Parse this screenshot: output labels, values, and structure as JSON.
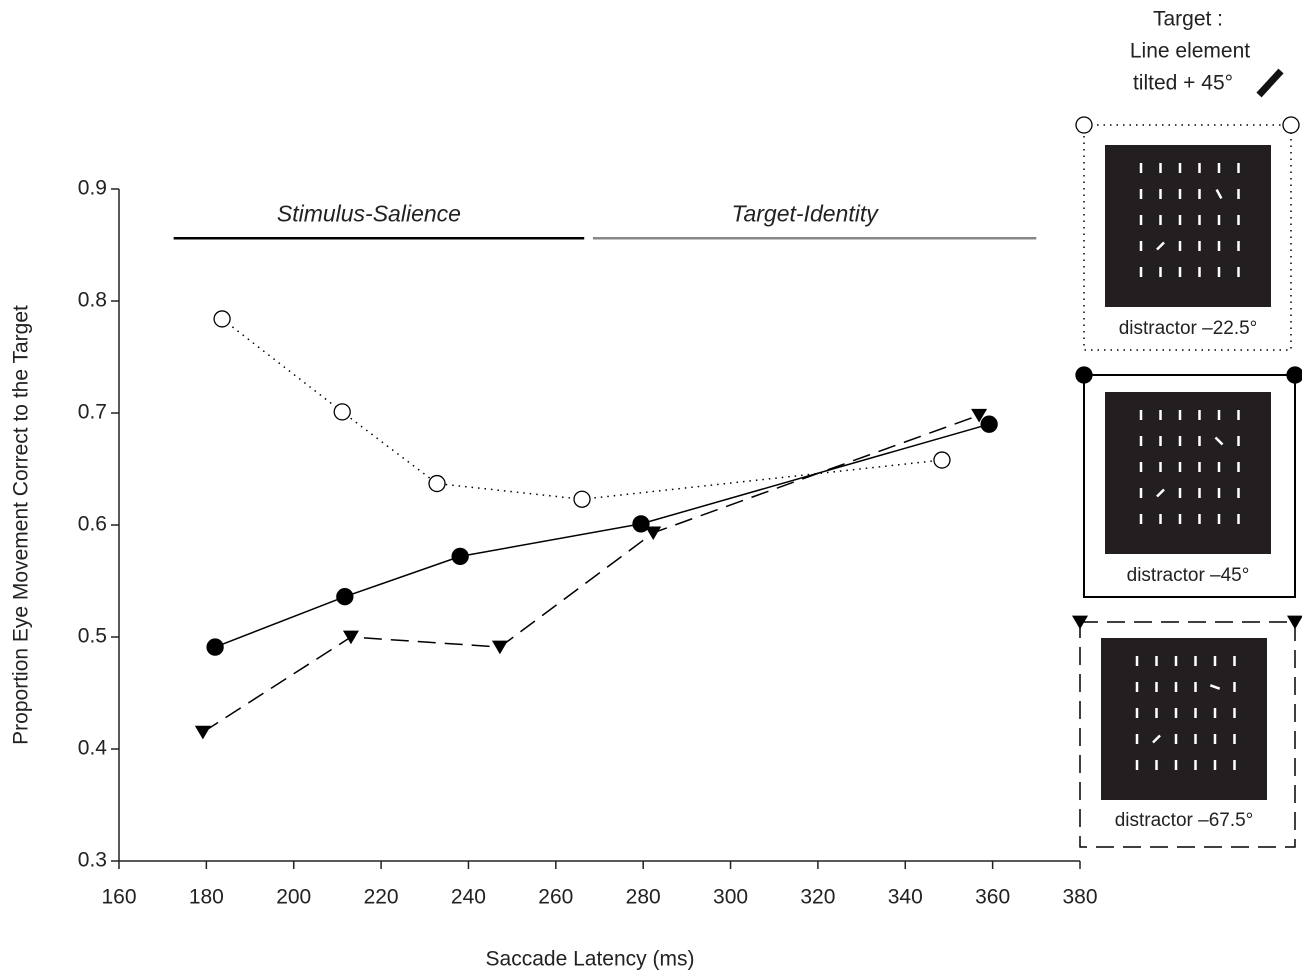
{
  "chart_data": {
    "type": "line",
    "x_label": "Saccade Latency (ms)",
    "y_label": "Proportion Eye Movement Correct to the Target",
    "xlim": [
      160,
      380
    ],
    "ylim": [
      0.3,
      0.9
    ],
    "xticks": [
      160,
      180,
      200,
      220,
      240,
      260,
      280,
      300,
      320,
      340,
      360,
      380
    ],
    "yticks": [
      0.3,
      0.4,
      0.5,
      0.6,
      0.7,
      0.8,
      0.9
    ],
    "annotations": [
      {
        "text": "Stimulus-Salience",
        "x": [
          172.5,
          266.5
        ],
        "y": 0.856,
        "color": "#000000"
      },
      {
        "text": "Target-Identity",
        "x": [
          268.5,
          370
        ],
        "y": 0.856,
        "color": "#888888"
      }
    ],
    "legend_title": [
      "Target :",
      "Line element",
      "tilted + 45°"
    ],
    "series": [
      {
        "name": "distractor –22.5°",
        "color": "#000000",
        "marker": "open-circle",
        "linestyle": "dotted",
        "x": [
          183.6,
          211.1,
          232.8,
          266,
          348.4
        ],
        "values": [
          0.784,
          0.701,
          0.637,
          0.623,
          0.658
        ]
      },
      {
        "name": "distractor –45°",
        "color": "#000000",
        "marker": "filled-circle",
        "linestyle": "solid",
        "x": [
          182,
          211.7,
          238.1,
          279.5,
          359.2
        ],
        "values": [
          0.491,
          0.536,
          0.572,
          0.601,
          0.69
        ]
      },
      {
        "name": "distractor –67.5°",
        "color": "#000000",
        "marker": "triangle-down",
        "linestyle": "dashed",
        "x": [
          179.2,
          213.1,
          247.2,
          282.3,
          356.9
        ],
        "values": [
          0.415,
          0.5,
          0.491,
          0.593,
          0.698
        ]
      }
    ]
  }
}
